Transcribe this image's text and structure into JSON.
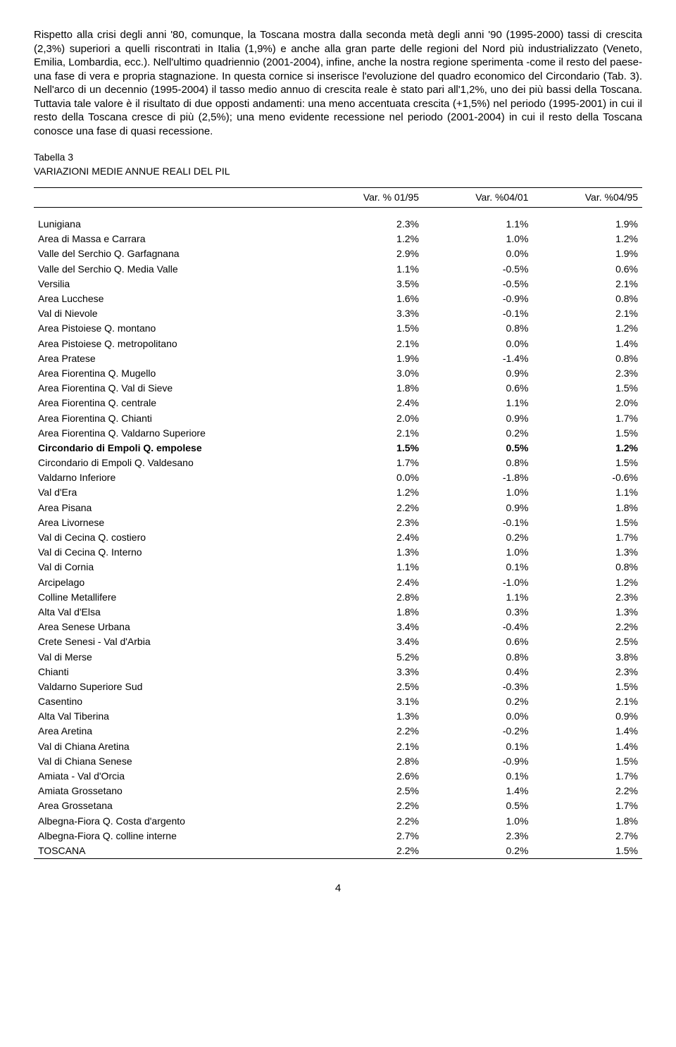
{
  "paragraph": "Rispetto alla crisi degli anni '80, comunque, la Toscana mostra dalla seconda metà degli anni '90 (1995-2000) tassi di crescita (2,3%) superiori a quelli riscontrati in Italia (1,9%) e anche alla gran parte delle regioni del Nord più industrializzato (Veneto, Emilia, Lombardia, ecc.). Nell'ultimo quadriennio (2001-2004), infine, anche la nostra regione sperimenta -come il resto del paese- una fase di vera e propria stagnazione. In questa cornice si inserisce l'evoluzione del quadro economico del Circondario (Tab. 3). Nell'arco di un decennio (1995-2004) il tasso medio annuo di crescita reale è stato pari all'1,2%, uno dei più bassi della Toscana. Tuttavia tale valore è il risultato di due opposti andamenti: una meno accentuata crescita (+1,5%) nel periodo (1995-2001) in cui il resto della Toscana cresce di più (2,5%); una meno evidente recessione nel periodo (2001-2004) in cui il resto della Toscana conosce una fase di quasi recessione.",
  "table": {
    "caption": "Tabella 3",
    "subtitle": "VARIAZIONI MEDIE ANNUE REALI DEL PIL",
    "headers": [
      "",
      "Var. % 01/95",
      "Var. %04/01",
      "Var. %04/95"
    ],
    "rows": [
      {
        "label": "Lunigiana",
        "v": [
          "2.3%",
          "1.1%",
          "1.9%"
        ]
      },
      {
        "label": "Area di Massa e  Carrara",
        "v": [
          "1.2%",
          "1.0%",
          "1.2%"
        ]
      },
      {
        "label": "Valle del Serchio Q. Garfagnana",
        "v": [
          "2.9%",
          "0.0%",
          "1.9%"
        ]
      },
      {
        "label": "Valle del  Serchio Q. Media Valle",
        "v": [
          "1.1%",
          "-0.5%",
          "0.6%"
        ]
      },
      {
        "label": "Versilia",
        "v": [
          "3.5%",
          "-0.5%",
          "2.1%"
        ]
      },
      {
        "label": "Area Lucchese",
        "v": [
          "1.6%",
          "-0.9%",
          "0.8%"
        ]
      },
      {
        "label": "Val di Nievole",
        "v": [
          "3.3%",
          "-0.1%",
          "2.1%"
        ]
      },
      {
        "label": "Area Pistoiese Q. montano",
        "v": [
          "1.5%",
          "0.8%",
          "1.2%"
        ]
      },
      {
        "label": "Area Pistoiese Q. metropolitano",
        "v": [
          "2.1%",
          "0.0%",
          "1.4%"
        ]
      },
      {
        "label": "Area Pratese",
        "v": [
          "1.9%",
          "-1.4%",
          "0.8%"
        ]
      },
      {
        "label": "Area Fiorentina Q. Mugello",
        "v": [
          "3.0%",
          "0.9%",
          "2.3%"
        ]
      },
      {
        "label": "Area Fiorentina Q. Val di Sieve",
        "v": [
          "1.8%",
          "0.6%",
          "1.5%"
        ]
      },
      {
        "label": "Area Fiorentina Q. centrale",
        "v": [
          "2.4%",
          "1.1%",
          "2.0%"
        ]
      },
      {
        "label": "Area Fiorentina Q. Chianti",
        "v": [
          "2.0%",
          "0.9%",
          "1.7%"
        ]
      },
      {
        "label": "Area Fiorentina Q. Valdarno Superiore",
        "v": [
          "2.1%",
          "0.2%",
          "1.5%"
        ]
      },
      {
        "label": "Circondario di Empoli Q. empolese",
        "v": [
          "1.5%",
          "0.5%",
          "1.2%"
        ],
        "bold": true
      },
      {
        "label": "Circondario di Empoli Q. Valdesano",
        "v": [
          "1.7%",
          "0.8%",
          "1.5%"
        ]
      },
      {
        "label": "Valdarno Inferiore",
        "v": [
          "0.0%",
          "-1.8%",
          "-0.6%"
        ]
      },
      {
        "label": "Val d'Era",
        "v": [
          "1.2%",
          "1.0%",
          "1.1%"
        ]
      },
      {
        "label": "Area Pisana",
        "v": [
          "2.2%",
          "0.9%",
          "1.8%"
        ]
      },
      {
        "label": "Area Livornese",
        "v": [
          "2.3%",
          "-0.1%",
          "1.5%"
        ]
      },
      {
        "label": "Val di Cecina Q. costiero",
        "v": [
          "2.4%",
          "0.2%",
          "1.7%"
        ]
      },
      {
        "label": "Val di Cecina Q.  Interno",
        "v": [
          "1.3%",
          "1.0%",
          "1.3%"
        ]
      },
      {
        "label": "Val di Cornia",
        "v": [
          "1.1%",
          "0.1%",
          "0.8%"
        ]
      },
      {
        "label": "Arcipelago",
        "v": [
          "2.4%",
          "-1.0%",
          "1.2%"
        ]
      },
      {
        "label": "Colline Metallifere",
        "v": [
          "2.8%",
          "1.1%",
          "2.3%"
        ]
      },
      {
        "label": "Alta Val d'Elsa",
        "v": [
          "1.8%",
          "0.3%",
          "1.3%"
        ]
      },
      {
        "label": "Area Senese  Urbana",
        "v": [
          "3.4%",
          "-0.4%",
          "2.2%"
        ]
      },
      {
        "label": "Crete Senesi - Val d'Arbia",
        "v": [
          "3.4%",
          "0.6%",
          "2.5%"
        ]
      },
      {
        "label": "Val di Merse",
        "v": [
          "5.2%",
          "0.8%",
          "3.8%"
        ]
      },
      {
        "label": "Chianti",
        "v": [
          "3.3%",
          "0.4%",
          "2.3%"
        ]
      },
      {
        "label": "Valdarno Superiore Sud",
        "v": [
          "2.5%",
          "-0.3%",
          "1.5%"
        ]
      },
      {
        "label": "Casentino",
        "v": [
          "3.1%",
          "0.2%",
          "2.1%"
        ]
      },
      {
        "label": "Alta Val Tiberina",
        "v": [
          "1.3%",
          "0.0%",
          "0.9%"
        ]
      },
      {
        "label": "Area Aretina",
        "v": [
          "2.2%",
          "-0.2%",
          "1.4%"
        ]
      },
      {
        "label": "Val di Chiana Aretina",
        "v": [
          "2.1%",
          "0.1%",
          "1.4%"
        ]
      },
      {
        "label": "Val di Chiana Senese",
        "v": [
          "2.8%",
          "-0.9%",
          "1.5%"
        ]
      },
      {
        "label": "Amiata -  Val d'Orcia",
        "v": [
          "2.6%",
          "0.1%",
          "1.7%"
        ]
      },
      {
        "label": "Amiata Grossetano",
        "v": [
          "2.5%",
          "1.4%",
          "2.2%"
        ]
      },
      {
        "label": "Area Grossetana",
        "v": [
          "2.2%",
          "0.5%",
          "1.7%"
        ]
      },
      {
        "label": "Albegna-Fiora Q. Costa d'argento",
        "v": [
          "2.2%",
          "1.0%",
          "1.8%"
        ]
      },
      {
        "label": "Albegna-Fiora Q. colline interne",
        "v": [
          "2.7%",
          "2.3%",
          "2.7%"
        ]
      },
      {
        "label": "TOSCANA",
        "v": [
          "2.2%",
          "0.2%",
          "1.5%"
        ]
      }
    ]
  },
  "page_number": "4"
}
